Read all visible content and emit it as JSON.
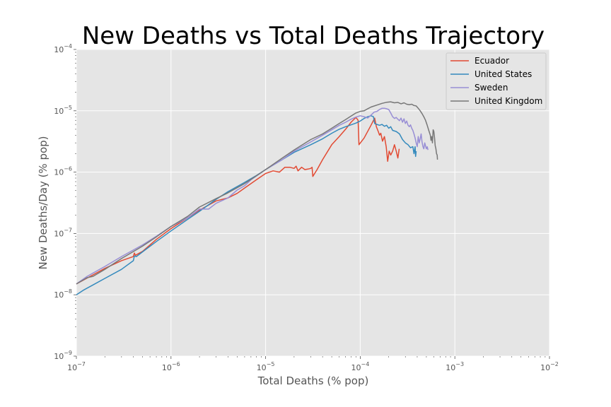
{
  "chart_data": {
    "type": "line",
    "title": "New Deaths vs Total Deaths Trajectory",
    "xlabel": "Total Deaths (% pop)",
    "ylabel": "New Deaths/Day (% pop)",
    "xscale": "log",
    "yscale": "log",
    "xlim": [
      1e-07,
      0.01
    ],
    "ylim": [
      1e-09,
      0.0001
    ],
    "xticks": [
      {
        "base": "10",
        "exp": "−7",
        "value": 1e-07
      },
      {
        "base": "10",
        "exp": "−6",
        "value": 1e-06
      },
      {
        "base": "10",
        "exp": "−5",
        "value": 1e-05
      },
      {
        "base": "10",
        "exp": "−4",
        "value": 0.0001
      },
      {
        "base": "10",
        "exp": "−3",
        "value": 0.001
      },
      {
        "base": "10",
        "exp": "−2",
        "value": 0.01
      }
    ],
    "yticks": [
      {
        "base": "10",
        "exp": "−9",
        "value": 1e-09
      },
      {
        "base": "10",
        "exp": "−8",
        "value": 1e-08
      },
      {
        "base": "10",
        "exp": "−7",
        "value": 1e-07
      },
      {
        "base": "10",
        "exp": "−6",
        "value": 1e-06
      },
      {
        "base": "10",
        "exp": "−5",
        "value": 1e-05
      },
      {
        "base": "10",
        "exp": "−4",
        "value": 0.0001
      }
    ],
    "grid": true,
    "legend_position": "top-right",
    "background": "#e5e5e5",
    "series": [
      {
        "name": "Ecuador",
        "color": "#e24a33",
        "points": [
          [
            1e-07,
            1.5e-08
          ],
          [
            1.4e-07,
            2e-08
          ],
          [
            2e-07,
            2.7e-08
          ],
          [
            3e-07,
            3.6e-08
          ],
          [
            4e-07,
            4.2e-08
          ],
          [
            4.1e-07,
            4.8e-08
          ],
          [
            4.2e-07,
            4.4e-08
          ],
          [
            5e-07,
            5.1e-08
          ],
          [
            7e-07,
            8e-08
          ],
          [
            1e-06,
            1.2e-07
          ],
          [
            1.5e-06,
            1.8e-07
          ],
          [
            2e-06,
            2.4e-07
          ],
          [
            3e-06,
            3.4e-07
          ],
          [
            4e-06,
            3.8e-07
          ],
          [
            5e-06,
            4.5e-07
          ],
          [
            6e-06,
            5.5e-07
          ],
          [
            8e-06,
            7.5e-07
          ],
          [
            1e-05,
            9.5e-07
          ],
          [
            1.2e-05,
            1.05e-06
          ],
          [
            1.4e-05,
            1e-06
          ],
          [
            1.6e-05,
            1.2e-06
          ],
          [
            1.8e-05,
            1.2e-06
          ],
          [
            2e-05,
            1.15e-06
          ],
          [
            2.1e-05,
            1.25e-06
          ],
          [
            2.2e-05,
            1.05e-06
          ],
          [
            2.4e-05,
            1.2e-06
          ],
          [
            2.6e-05,
            1.1e-06
          ],
          [
            2.8e-05,
            1.12e-06
          ],
          [
            3e-05,
            1.15e-06
          ],
          [
            3.1e-05,
            1.2e-06
          ],
          [
            3.15e-05,
            8.5e-07
          ],
          [
            3.5e-05,
            1.1e-06
          ],
          [
            4e-05,
            1.6e-06
          ],
          [
            5e-05,
            2.8e-06
          ],
          [
            6e-05,
            3.8e-06
          ],
          [
            7e-05,
            5e-06
          ],
          [
            8e-05,
            6.5e-06
          ],
          [
            9e-05,
            7.8e-06
          ],
          [
            9.5e-05,
            7e-06
          ],
          [
            9.7e-05,
            2.8e-06
          ],
          [
            0.00011,
            3.6e-06
          ],
          [
            0.00013,
            5.8e-06
          ],
          [
            0.000142,
            7.6e-06
          ],
          [
            0.000148,
            5.5e-06
          ],
          [
            0.000155,
            4.6e-06
          ],
          [
            0.00016,
            4e-06
          ],
          [
            0.000165,
            4.3e-06
          ],
          [
            0.000172,
            3.2e-06
          ],
          [
            0.00018,
            3.8e-06
          ],
          [
            0.000188,
            2.6e-06
          ],
          [
            0.000195,
            1.5e-06
          ],
          [
            0.000202,
            2.2e-06
          ],
          [
            0.00021,
            1.9e-06
          ],
          [
            0.00022,
            2.2e-06
          ],
          [
            0.00023,
            2.8e-06
          ],
          [
            0.00024,
            2.2e-06
          ],
          [
            0.00025,
            1.7e-06
          ],
          [
            0.000258,
            2.4e-06
          ]
        ]
      },
      {
        "name": "United States",
        "color": "#348abd",
        "points": [
          [
            1e-07,
            1e-08
          ],
          [
            1.2e-07,
            1.2e-08
          ],
          [
            1.5e-07,
            1.45e-08
          ],
          [
            2e-07,
            1.85e-08
          ],
          [
            3e-07,
            2.6e-08
          ],
          [
            4e-07,
            3.6e-08
          ],
          [
            4.1e-07,
            4.3e-08
          ],
          [
            4.3e-07,
            4.2e-08
          ],
          [
            5e-07,
            5e-08
          ],
          [
            7e-07,
            7.4e-08
          ],
          [
            1e-06,
            1.1e-07
          ],
          [
            1.5e-06,
            1.7e-07
          ],
          [
            2e-06,
            2.3e-07
          ],
          [
            3e-06,
            3.6e-07
          ],
          [
            4e-06,
            4.8e-07
          ],
          [
            6e-06,
            6.8e-07
          ],
          [
            8e-06,
            8.8e-07
          ],
          [
            1e-05,
            1.1e-06
          ],
          [
            1.5e-05,
            1.6e-06
          ],
          [
            2e-05,
            2.1e-06
          ],
          [
            3e-05,
            2.8e-06
          ],
          [
            4e-05,
            3.5e-06
          ],
          [
            5e-05,
            4.3e-06
          ],
          [
            6e-05,
            5e-06
          ],
          [
            7e-05,
            5.5e-06
          ],
          [
            8e-05,
            5.9e-06
          ],
          [
            9e-05,
            6.3e-06
          ],
          [
            0.0001,
            6.8e-06
          ],
          [
            0.00011,
            7.5e-06
          ],
          [
            0.00012,
            8e-06
          ],
          [
            0.00013,
            8.3e-06
          ],
          [
            0.000138,
            8e-06
          ],
          [
            0.000142,
            6.2e-06
          ],
          [
            0.00015,
            6e-06
          ],
          [
            0.00016,
            5.8e-06
          ],
          [
            0.00017,
            6e-06
          ],
          [
            0.00018,
            5.6e-06
          ],
          [
            0.00019,
            5.8e-06
          ],
          [
            0.0002,
            5.2e-06
          ],
          [
            0.00021,
            5.5e-06
          ],
          [
            0.00022,
            4.8e-06
          ],
          [
            0.00024,
            4.6e-06
          ],
          [
            0.00026,
            4.2e-06
          ],
          [
            0.00028,
            3.4e-06
          ],
          [
            0.0003,
            3e-06
          ],
          [
            0.00032,
            2.8e-06
          ],
          [
            0.00034,
            2.5e-06
          ],
          [
            0.00036,
            2.6e-06
          ],
          [
            0.00037,
            2e-06
          ],
          [
            0.00038,
            2.6e-06
          ],
          [
            0.000385,
            1.8e-06
          ],
          [
            0.00039,
            2.2e-06
          ]
        ]
      },
      {
        "name": "Sweden",
        "color": "#988ed5",
        "points": [
          [
            1e-07,
            1.5e-08
          ],
          [
            1.3e-07,
            2e-08
          ],
          [
            2e-07,
            2.9e-08
          ],
          [
            3e-07,
            4.2e-08
          ],
          [
            5e-07,
            6.5e-08
          ],
          [
            7e-07,
            9e-08
          ],
          [
            1e-06,
            1.3e-07
          ],
          [
            1.5e-06,
            1.8e-07
          ],
          [
            2e-06,
            2.5e-07
          ],
          [
            2.5e-06,
            2.5e-07
          ],
          [
            3e-06,
            3.1e-07
          ],
          [
            4e-06,
            3.8e-07
          ],
          [
            5e-06,
            5.1e-07
          ],
          [
            6e-06,
            6e-07
          ],
          [
            7e-06,
            7.5e-07
          ],
          [
            1e-05,
            1.1e-06
          ],
          [
            1.5e-05,
            1.6e-06
          ],
          [
            2e-05,
            2.2e-06
          ],
          [
            3e-05,
            3.1e-06
          ],
          [
            4e-05,
            4e-06
          ],
          [
            5e-05,
            4.9e-06
          ],
          [
            6e-05,
            5.8e-06
          ],
          [
            7e-05,
            6.5e-06
          ],
          [
            8e-05,
            7.3e-06
          ],
          [
            9e-05,
            7.9e-06
          ],
          [
            0.0001,
            8.3e-06
          ],
          [
            0.00011,
            8e-06
          ],
          [
            0.00012,
            7.6e-06
          ],
          [
            0.00013,
            8.5e-06
          ],
          [
            0.00014,
            9.5e-06
          ],
          [
            0.00015,
            9.8e-06
          ],
          [
            0.00016,
            1.05e-05
          ],
          [
            0.00017,
            1.1e-05
          ],
          [
            0.00018,
            1.1e-05
          ],
          [
            0.00019,
            1.08e-05
          ],
          [
            0.0002,
            1.05e-05
          ],
          [
            0.00021,
            9.2e-06
          ],
          [
            0.00022,
            8e-06
          ],
          [
            0.00023,
            7.5e-06
          ],
          [
            0.00024,
            7.8e-06
          ],
          [
            0.00025,
            7.3e-06
          ],
          [
            0.00026,
            6.9e-06
          ],
          [
            0.00027,
            7.6e-06
          ],
          [
            0.00028,
            6.5e-06
          ],
          [
            0.00029,
            7.4e-06
          ],
          [
            0.0003,
            6.2e-06
          ],
          [
            0.00031,
            6.8e-06
          ],
          [
            0.00032,
            5.8e-06
          ],
          [
            0.00033,
            5.5e-06
          ],
          [
            0.00034,
            5.9e-06
          ],
          [
            0.00035,
            5.2e-06
          ],
          [
            0.00036,
            4.8e-06
          ],
          [
            0.00037,
            4.2e-06
          ],
          [
            0.00038,
            3.6e-06
          ],
          [
            0.00039,
            3e-06
          ],
          [
            0.0004,
            2.6e-06
          ],
          [
            0.00041,
            3.8e-06
          ],
          [
            0.00042,
            3e-06
          ],
          [
            0.00043,
            3.5e-06
          ],
          [
            0.00044,
            4.2e-06
          ],
          [
            0.00045,
            3.1e-06
          ],
          [
            0.00046,
            2.6e-06
          ],
          [
            0.00047,
            2.4e-06
          ],
          [
            0.00048,
            3e-06
          ],
          [
            0.00049,
            2.7e-06
          ],
          [
            0.0005,
            2.4e-06
          ],
          [
            0.00051,
            2.6e-06
          ],
          [
            0.00052,
            2.3e-06
          ]
        ]
      },
      {
        "name": "United Kingdom",
        "color": "#777777",
        "points": [
          [
            1e-07,
            1.5e-08
          ],
          [
            1.3e-07,
            1.9e-08
          ],
          [
            1.5e-07,
            2e-08
          ],
          [
            2e-07,
            2.6e-08
          ],
          [
            3e-07,
            3.9e-08
          ],
          [
            5e-07,
            6.2e-08
          ],
          [
            7e-07,
            8.8e-08
          ],
          [
            1e-06,
            1.3e-07
          ],
          [
            1.5e-06,
            1.9e-07
          ],
          [
            2e-06,
            2.7e-07
          ],
          [
            3e-06,
            3.7e-07
          ],
          [
            4e-06,
            4.6e-07
          ],
          [
            6e-06,
            6.5e-07
          ],
          [
            8e-06,
            8.7e-07
          ],
          [
            1e-05,
            1.1e-06
          ],
          [
            1.5e-05,
            1.7e-06
          ],
          [
            2e-05,
            2.3e-06
          ],
          [
            3e-05,
            3.4e-06
          ],
          [
            4e-05,
            4.2e-06
          ],
          [
            5e-05,
            5.2e-06
          ],
          [
            6e-05,
            6.2e-06
          ],
          [
            7e-05,
            7.2e-06
          ],
          [
            8e-05,
            8.2e-06
          ],
          [
            9e-05,
            9.2e-06
          ],
          [
            0.0001,
            9.8e-06
          ],
          [
            0.00011,
            1e-05
          ],
          [
            0.00012,
            1.08e-05
          ],
          [
            0.00013,
            1.15e-05
          ],
          [
            0.00015,
            1.24e-05
          ],
          [
            0.00017,
            1.32e-05
          ],
          [
            0.00019,
            1.38e-05
          ],
          [
            0.00021,
            1.4e-05
          ],
          [
            0.00023,
            1.35e-05
          ],
          [
            0.00025,
            1.37e-05
          ],
          [
            0.00027,
            1.3e-05
          ],
          [
            0.00029,
            1.35e-05
          ],
          [
            0.00031,
            1.28e-05
          ],
          [
            0.00033,
            1.26e-05
          ],
          [
            0.00035,
            1.28e-05
          ],
          [
            0.00037,
            1.22e-05
          ],
          [
            0.00039,
            1.2e-05
          ],
          [
            0.00041,
            1.1e-05
          ],
          [
            0.00043,
            1e-05
          ],
          [
            0.00045,
            9e-06
          ],
          [
            0.00047,
            8e-06
          ],
          [
            0.00049,
            7e-06
          ],
          [
            0.00051,
            5.8e-06
          ],
          [
            0.00053,
            4.8e-06
          ],
          [
            0.00055,
            4e-06
          ],
          [
            0.00056,
            3.3e-06
          ],
          [
            0.00057,
            3.8e-06
          ],
          [
            0.00058,
            3e-06
          ],
          [
            0.00059,
            4.9e-06
          ],
          [
            0.0006,
            4.6e-06
          ],
          [
            0.00061,
            3.6e-06
          ],
          [
            0.00062,
            2.7e-06
          ],
          [
            0.00063,
            2.4e-06
          ],
          [
            0.00064,
            2e-06
          ],
          [
            0.00065,
            1.9e-06
          ],
          [
            0.000655,
            1.6e-06
          ]
        ]
      }
    ]
  }
}
